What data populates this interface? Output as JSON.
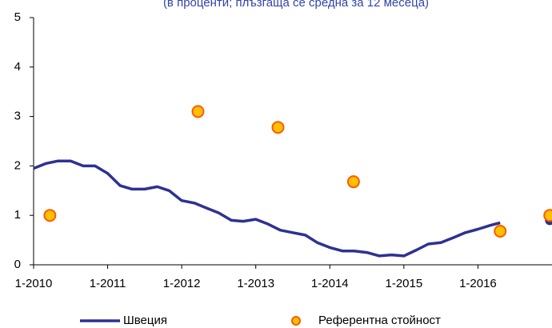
{
  "chart_data": {
    "type": "line",
    "subtitle": "(в проценти; плъзгаща се средна за 12 месеца)",
    "xlim": [
      2010,
      2017
    ],
    "xticks": [
      {
        "value": 2010,
        "label": "1-2010"
      },
      {
        "value": 2011,
        "label": "1-2011"
      },
      {
        "value": 2012,
        "label": "1-2012"
      },
      {
        "value": 2013,
        "label": "1-2013"
      },
      {
        "value": 2014,
        "label": "1-2014"
      },
      {
        "value": 2015,
        "label": "1-2015"
      },
      {
        "value": 2016,
        "label": "1-2016"
      }
    ],
    "ylim": [
      0,
      5
    ],
    "yticks": [
      0,
      1,
      2,
      3,
      4,
      5
    ],
    "series": [
      {
        "name": "Швеция",
        "type": "line",
        "color": "#2e3192",
        "x": [
          2010.0,
          2010.17,
          2010.33,
          2010.5,
          2010.67,
          2010.83,
          2011.0,
          2011.17,
          2011.33,
          2011.5,
          2011.67,
          2011.83,
          2012.0,
          2012.17,
          2012.33,
          2012.5,
          2012.67,
          2012.83,
          2013.0,
          2013.17,
          2013.33,
          2013.5,
          2013.67,
          2013.83,
          2014.0,
          2014.17,
          2014.33,
          2014.5,
          2014.67,
          2014.83,
          2015.0,
          2015.17,
          2015.33,
          2015.5,
          2015.67,
          2015.83,
          2016.0,
          2016.17,
          2016.3,
          2016.6,
          2016.97
        ],
        "values": [
          1.95,
          2.05,
          2.1,
          2.1,
          2.0,
          2.0,
          1.85,
          1.6,
          1.53,
          1.53,
          1.58,
          1.5,
          1.3,
          1.25,
          1.15,
          1.05,
          0.9,
          0.88,
          0.92,
          0.82,
          0.7,
          0.65,
          0.6,
          0.45,
          0.35,
          0.28,
          0.28,
          0.25,
          0.18,
          0.2,
          0.18,
          0.3,
          0.42,
          0.45,
          0.55,
          0.65,
          0.72,
          0.8,
          0.85,
          null,
          0.9
        ]
      },
      {
        "name": "Референтна стойност",
        "type": "scatter",
        "color": "#ffc000",
        "edgecolor": "#ff5a00",
        "x": [
          2010.22,
          2012.22,
          2013.3,
          2014.32,
          2016.3,
          2016.97
        ],
        "values": [
          1.0,
          3.1,
          2.78,
          1.68,
          0.68,
          1.0
        ]
      }
    ]
  }
}
